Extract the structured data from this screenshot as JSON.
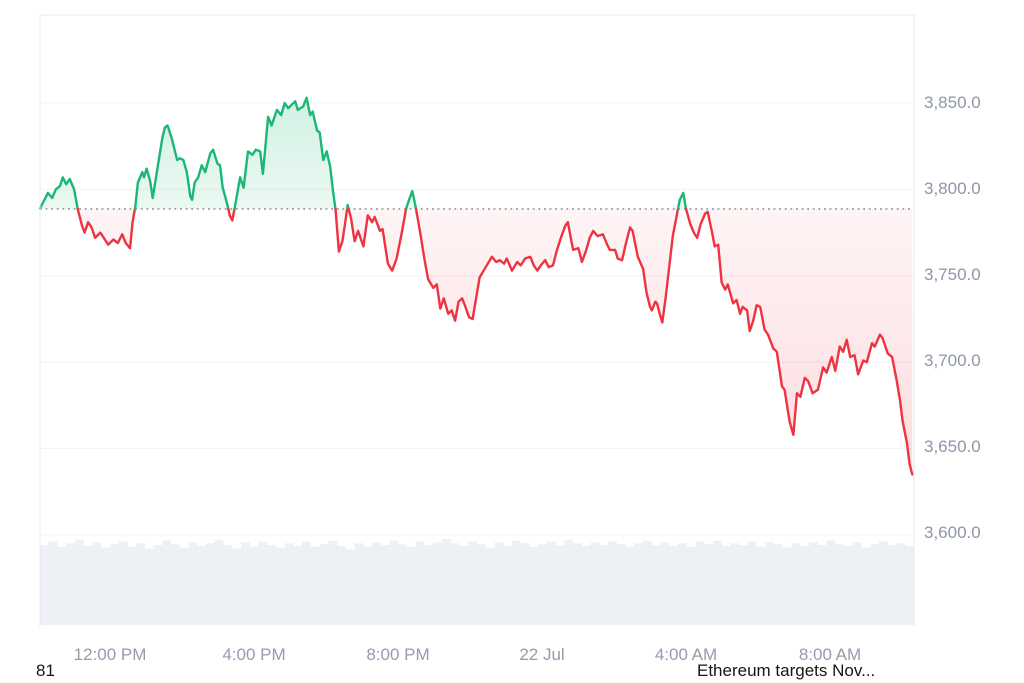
{
  "footer": {
    "left_text": "81",
    "right_text": "Ethereum targets Nov..."
  },
  "chart_data": {
    "type": "area",
    "title": "",
    "xlabel": "",
    "ylabel": "",
    "legend": "none",
    "grid": "horizontal",
    "baseline_price": 3788.7,
    "ylim": [
      3600,
      3901
    ],
    "y_axis": {
      "ticks": [
        "3,850.0",
        "3,800.0",
        "3,750.0",
        "3,700.0",
        "3,650.0",
        "3,600.0"
      ],
      "tick_values": [
        3850,
        3800,
        3750,
        3700,
        3650,
        3600
      ]
    },
    "x_axis": {
      "ticks": [
        "12:00 PM",
        "4:00 PM",
        "8:00 PM",
        "22 Jul",
        "4:00 AM",
        "8:00 AM"
      ],
      "tick_positions": [
        0.08,
        0.245,
        0.41,
        0.574,
        0.739,
        0.904
      ]
    },
    "colors": {
      "up": "#1ab876",
      "down": "#ee3341",
      "grid": "#f2f3f5",
      "frame": "#e7e9ed",
      "baseline": "#8f959f",
      "volume": "#edf0f4",
      "axis_label": "#8e96a8"
    },
    "series": [
      {
        "name": "price",
        "points": [
          [
            0.0,
            3789
          ],
          [
            0.005,
            3794
          ],
          [
            0.009,
            3798
          ],
          [
            0.014,
            3795
          ],
          [
            0.018,
            3800
          ],
          [
            0.023,
            3802
          ],
          [
            0.026,
            3807
          ],
          [
            0.03,
            3803
          ],
          [
            0.034,
            3806
          ],
          [
            0.039,
            3800
          ],
          [
            0.043,
            3789
          ],
          [
            0.048,
            3779
          ],
          [
            0.051,
            3775
          ],
          [
            0.055,
            3781
          ],
          [
            0.059,
            3778
          ],
          [
            0.063,
            3772
          ],
          [
            0.069,
            3775
          ],
          [
            0.073,
            3772
          ],
          [
            0.078,
            3768
          ],
          [
            0.084,
            3771
          ],
          [
            0.089,
            3769
          ],
          [
            0.094,
            3774
          ],
          [
            0.098,
            3769
          ],
          [
            0.103,
            3766
          ],
          [
            0.106,
            3781
          ],
          [
            0.109,
            3790
          ],
          [
            0.112,
            3804
          ],
          [
            0.117,
            3810
          ],
          [
            0.119,
            3807
          ],
          [
            0.122,
            3812
          ],
          [
            0.126,
            3805
          ],
          [
            0.129,
            3795
          ],
          [
            0.134,
            3811
          ],
          [
            0.14,
            3830
          ],
          [
            0.143,
            3836
          ],
          [
            0.146,
            3837
          ],
          [
            0.151,
            3829
          ],
          [
            0.153,
            3825
          ],
          [
            0.157,
            3817
          ],
          [
            0.16,
            3818
          ],
          [
            0.164,
            3817
          ],
          [
            0.168,
            3810
          ],
          [
            0.172,
            3796
          ],
          [
            0.174,
            3794
          ],
          [
            0.177,
            3804
          ],
          [
            0.181,
            3807
          ],
          [
            0.185,
            3814
          ],
          [
            0.189,
            3810
          ],
          [
            0.195,
            3821
          ],
          [
            0.198,
            3823
          ],
          [
            0.203,
            3815
          ],
          [
            0.206,
            3814
          ],
          [
            0.209,
            3801
          ],
          [
            0.214,
            3792
          ],
          [
            0.217,
            3785
          ],
          [
            0.22,
            3782
          ],
          [
            0.223,
            3790
          ],
          [
            0.229,
            3807
          ],
          [
            0.233,
            3801
          ],
          [
            0.238,
            3822
          ],
          [
            0.243,
            3820
          ],
          [
            0.247,
            3823
          ],
          [
            0.252,
            3822
          ],
          [
            0.255,
            3809
          ],
          [
            0.261,
            3842
          ],
          [
            0.265,
            3837
          ],
          [
            0.271,
            3846
          ],
          [
            0.276,
            3843
          ],
          [
            0.28,
            3850
          ],
          [
            0.284,
            3847
          ],
          [
            0.288,
            3849
          ],
          [
            0.292,
            3851
          ],
          [
            0.295,
            3846
          ],
          [
            0.301,
            3848
          ],
          [
            0.305,
            3853
          ],
          [
            0.309,
            3843
          ],
          [
            0.312,
            3845
          ],
          [
            0.317,
            3834
          ],
          [
            0.32,
            3833
          ],
          [
            0.324,
            3817
          ],
          [
            0.328,
            3822
          ],
          [
            0.332,
            3813
          ],
          [
            0.335,
            3800
          ],
          [
            0.338,
            3789
          ],
          [
            0.342,
            3764
          ],
          [
            0.346,
            3770
          ],
          [
            0.349,
            3780
          ],
          [
            0.352,
            3791
          ],
          [
            0.356,
            3783
          ],
          [
            0.36,
            3770
          ],
          [
            0.364,
            3776
          ],
          [
            0.37,
            3767
          ],
          [
            0.375,
            3785
          ],
          [
            0.38,
            3781
          ],
          [
            0.383,
            3784
          ],
          [
            0.389,
            3776
          ],
          [
            0.392,
            3777
          ],
          [
            0.398,
            3757
          ],
          [
            0.403,
            3753
          ],
          [
            0.408,
            3760
          ],
          [
            0.414,
            3775
          ],
          [
            0.419,
            3789
          ],
          [
            0.423,
            3795
          ],
          [
            0.426,
            3799
          ],
          [
            0.429,
            3792
          ],
          [
            0.435,
            3775
          ],
          [
            0.44,
            3759
          ],
          [
            0.444,
            3748
          ],
          [
            0.45,
            3743
          ],
          [
            0.454,
            3745
          ],
          [
            0.458,
            3731
          ],
          [
            0.462,
            3737
          ],
          [
            0.467,
            3728
          ],
          [
            0.471,
            3730
          ],
          [
            0.475,
            3724
          ],
          [
            0.479,
            3735
          ],
          [
            0.483,
            3737
          ],
          [
            0.486,
            3733
          ],
          [
            0.491,
            3726
          ],
          [
            0.495,
            3725
          ],
          [
            0.5,
            3740
          ],
          [
            0.503,
            3749
          ],
          [
            0.51,
            3755
          ],
          [
            0.517,
            3761
          ],
          [
            0.522,
            3758
          ],
          [
            0.526,
            3759
          ],
          [
            0.531,
            3757
          ],
          [
            0.534,
            3760
          ],
          [
            0.54,
            3753
          ],
          [
            0.546,
            3758
          ],
          [
            0.55,
            3756
          ],
          [
            0.555,
            3760
          ],
          [
            0.561,
            3761
          ],
          [
            0.565,
            3756
          ],
          [
            0.569,
            3753
          ],
          [
            0.573,
            3756
          ],
          [
            0.578,
            3759
          ],
          [
            0.582,
            3755
          ],
          [
            0.587,
            3756
          ],
          [
            0.591,
            3764
          ],
          [
            0.596,
            3772
          ],
          [
            0.601,
            3779
          ],
          [
            0.604,
            3781
          ],
          [
            0.608,
            3770
          ],
          [
            0.61,
            3765
          ],
          [
            0.616,
            3766
          ],
          [
            0.62,
            3758
          ],
          [
            0.625,
            3765
          ],
          [
            0.629,
            3772
          ],
          [
            0.633,
            3776
          ],
          [
            0.638,
            3773
          ],
          [
            0.644,
            3774
          ],
          [
            0.649,
            3768
          ],
          [
            0.652,
            3765
          ],
          [
            0.658,
            3765
          ],
          [
            0.661,
            3760
          ],
          [
            0.666,
            3759
          ],
          [
            0.67,
            3768
          ],
          [
            0.675,
            3778
          ],
          [
            0.678,
            3776
          ],
          [
            0.684,
            3761
          ],
          [
            0.69,
            3754
          ],
          [
            0.694,
            3740
          ],
          [
            0.698,
            3732
          ],
          [
            0.7,
            3730
          ],
          [
            0.704,
            3735
          ],
          [
            0.706,
            3734
          ],
          [
            0.709,
            3728
          ],
          [
            0.712,
            3723
          ],
          [
            0.716,
            3738
          ],
          [
            0.721,
            3760
          ],
          [
            0.724,
            3773
          ],
          [
            0.729,
            3786
          ],
          [
            0.732,
            3794
          ],
          [
            0.736,
            3798
          ],
          [
            0.739,
            3789
          ],
          [
            0.744,
            3780
          ],
          [
            0.748,
            3775
          ],
          [
            0.752,
            3772
          ],
          [
            0.756,
            3780
          ],
          [
            0.761,
            3786
          ],
          [
            0.764,
            3787
          ],
          [
            0.769,
            3775
          ],
          [
            0.772,
            3767
          ],
          [
            0.776,
            3768
          ],
          [
            0.78,
            3746
          ],
          [
            0.784,
            3742
          ],
          [
            0.787,
            3745
          ],
          [
            0.793,
            3734
          ],
          [
            0.797,
            3736
          ],
          [
            0.801,
            3728
          ],
          [
            0.804,
            3732
          ],
          [
            0.809,
            3730
          ],
          [
            0.812,
            3718
          ],
          [
            0.816,
            3724
          ],
          [
            0.82,
            3733
          ],
          [
            0.824,
            3732
          ],
          [
            0.829,
            3719
          ],
          [
            0.833,
            3716
          ],
          [
            0.839,
            3708
          ],
          [
            0.843,
            3706
          ],
          [
            0.849,
            3686
          ],
          [
            0.852,
            3684
          ],
          [
            0.856,
            3671
          ],
          [
            0.858,
            3665
          ],
          [
            0.862,
            3658
          ],
          [
            0.866,
            3682
          ],
          [
            0.87,
            3680
          ],
          [
            0.875,
            3691
          ],
          [
            0.879,
            3689
          ],
          [
            0.884,
            3682
          ],
          [
            0.89,
            3684
          ],
          [
            0.896,
            3697
          ],
          [
            0.9,
            3694
          ],
          [
            0.906,
            3703
          ],
          [
            0.91,
            3695
          ],
          [
            0.915,
            3709
          ],
          [
            0.919,
            3706
          ],
          [
            0.923,
            3713
          ],
          [
            0.927,
            3703
          ],
          [
            0.932,
            3704
          ],
          [
            0.936,
            3693
          ],
          [
            0.942,
            3701
          ],
          [
            0.946,
            3700
          ],
          [
            0.952,
            3711
          ],
          [
            0.955,
            3709
          ],
          [
            0.961,
            3716
          ],
          [
            0.964,
            3714
          ],
          [
            0.97,
            3705
          ],
          [
            0.975,
            3703
          ],
          [
            0.98,
            3690
          ],
          [
            0.984,
            3678
          ],
          [
            0.987,
            3666
          ],
          [
            0.992,
            3653
          ],
          [
            0.995,
            3641
          ],
          [
            0.998,
            3635
          ]
        ]
      }
    ],
    "volume_profile": [
      0.93,
      0.97,
      0.91,
      0.95,
      0.99,
      0.92,
      0.96,
      0.9,
      0.94,
      0.97,
      0.91,
      0.95,
      0.89,
      0.93,
      0.98,
      0.94,
      0.9,
      0.96,
      0.92,
      0.95,
      0.99,
      0.93,
      0.89,
      0.96,
      0.91,
      0.97,
      0.93,
      0.9,
      0.95,
      0.92,
      0.97,
      0.91,
      0.94,
      0.98,
      0.92,
      0.88,
      0.95,
      0.91,
      0.96,
      0.93,
      0.98,
      0.94,
      0.91,
      0.97,
      0.93,
      0.96,
      1.0,
      0.95,
      0.92,
      0.97,
      0.94,
      0.9,
      0.96,
      0.92,
      0.98,
      0.95,
      0.91,
      0.94,
      0.97,
      0.93,
      0.99,
      0.95,
      0.92,
      0.96,
      0.93,
      0.97,
      0.94,
      0.91,
      0.95,
      0.98,
      0.93,
      0.96,
      0.92,
      0.95,
      0.91,
      0.97,
      0.94,
      0.98,
      0.92,
      0.95,
      0.93,
      0.97,
      0.91,
      0.96,
      0.94,
      0.9,
      0.95,
      0.92,
      0.96,
      0.93,
      0.98,
      0.94,
      0.92,
      0.96,
      0.9,
      0.94,
      0.97,
      0.93,
      0.95,
      0.92
    ]
  }
}
